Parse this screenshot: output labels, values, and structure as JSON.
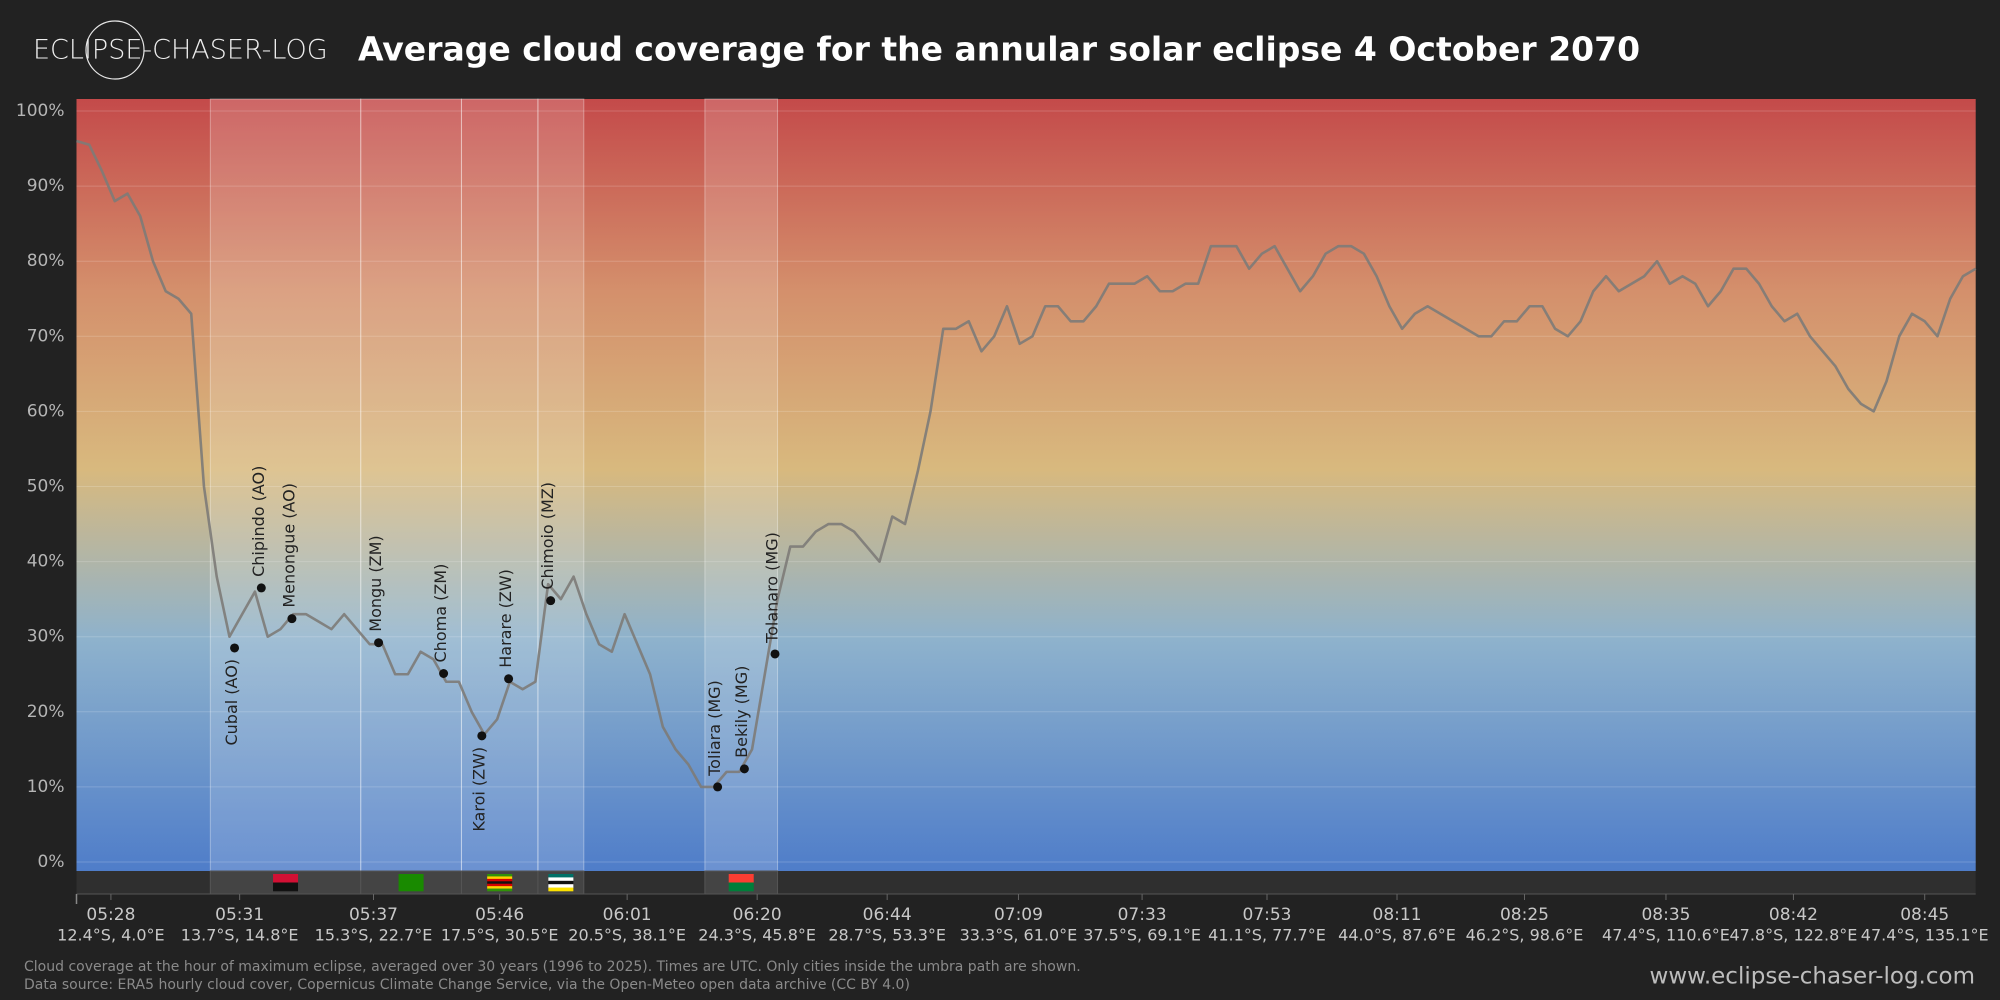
{
  "brand": "ECLIPSE-CHASER-LOG",
  "chart_data": {
    "type": "line",
    "title": "Average cloud coverage for the annular solar eclipse 4 October 2070",
    "color": "#7d7b78",
    "values": [
      96,
      95.5,
      92,
      88,
      89,
      86,
      80,
      76,
      75,
      73,
      50,
      38,
      30,
      33,
      36,
      30,
      31,
      33,
      33,
      32,
      31,
      33,
      31,
      29,
      29,
      25,
      25,
      28,
      27,
      24,
      24,
      20,
      17,
      19,
      24,
      23,
      24,
      37,
      35,
      38,
      33,
      29,
      28,
      33,
      29,
      25,
      18,
      15,
      13,
      10,
      10,
      12,
      12,
      15,
      25,
      35,
      42,
      42,
      44,
      45,
      45,
      44,
      42,
      40,
      46,
      45,
      52,
      60,
      71,
      71,
      72,
      68,
      70,
      74,
      69,
      70,
      74,
      74,
      72,
      72,
      74,
      77,
      77,
      77,
      78,
      76,
      76,
      77,
      77,
      82,
      82,
      82,
      79,
      81,
      82,
      79,
      76,
      78,
      81,
      82,
      82,
      81,
      78,
      74,
      71,
      73,
      74,
      73,
      72,
      71,
      70,
      70,
      72,
      72,
      74,
      74,
      71,
      70,
      72,
      76,
      78,
      76,
      77,
      78,
      80,
      77,
      78,
      77,
      74,
      76,
      79,
      79,
      77,
      74,
      72,
      73,
      70,
      68,
      66,
      63,
      61,
      60,
      64,
      70,
      73,
      72,
      70,
      75,
      78,
      79
    ],
    "xlim": [
      0,
      149
    ],
    "ylim": [
      0,
      100
    ],
    "yticks": [
      {
        "value": 0,
        "label": "0%"
      },
      {
        "value": 10,
        "label": "10%"
      },
      {
        "value": 20,
        "label": "20%"
      },
      {
        "value": 30,
        "label": "30%"
      },
      {
        "value": 40,
        "label": "40%"
      },
      {
        "value": 50,
        "label": "50%"
      },
      {
        "value": 60,
        "label": "60%"
      },
      {
        "value": 70,
        "label": "70%"
      },
      {
        "value": 80,
        "label": "80%"
      },
      {
        "value": 90,
        "label": "90%"
      },
      {
        "value": 100,
        "label": "100%"
      }
    ],
    "xticks": [
      {
        "value": 2.7,
        "label": "05:28",
        "location": "12.4°S, 4.0°E"
      },
      {
        "value": 12.8,
        "label": "05:31",
        "location": "13.7°S, 14.8°E"
      },
      {
        "value": 23.3,
        "label": "05:37",
        "location": "15.3°S, 22.7°E"
      },
      {
        "value": 33.2,
        "label": "05:46",
        "location": "17.5°S, 30.5°E"
      },
      {
        "value": 43.2,
        "label": "06:01",
        "location": "20.5°S, 38.1°E"
      },
      {
        "value": 53.4,
        "label": "06:20",
        "location": "24.3°S, 45.8°E"
      },
      {
        "value": 63.6,
        "label": "06:44",
        "location": "28.7°S, 53.3°E"
      },
      {
        "value": 73.9,
        "label": "07:09",
        "location": "33.3°S, 61.0°E"
      },
      {
        "value": 83.6,
        "label": "07:33",
        "location": "37.5°S, 69.1°E"
      },
      {
        "value": 93.4,
        "label": "07:53",
        "location": "41.1°S, 77.7°E"
      },
      {
        "value": 103.6,
        "label": "08:11",
        "location": "44.0°S, 87.6°E"
      },
      {
        "value": 113.6,
        "label": "08:25",
        "location": "46.2°S, 98.6°E"
      },
      {
        "value": 124.7,
        "label": "08:35",
        "location": "47.4°S, 110.6°E"
      },
      {
        "value": 134.7,
        "label": "08:42",
        "location": "47.8°S, 122.8°E"
      },
      {
        "value": 145.0,
        "label": "08:45",
        "location": "47.4°S, 135.1°E"
      }
    ],
    "grid": true,
    "regions": [
      {
        "start": 10.5,
        "end": 22.3,
        "flag_colors": [
          "#d21034",
          "#111111"
        ]
      },
      {
        "start": 22.3,
        "end": 30.2,
        "flag_colors": [
          "#198a00",
          "#198a00"
        ]
      },
      {
        "start": 30.2,
        "end": 36.2,
        "flag_colors": [
          "#319208",
          "#ffd200",
          "#d40000",
          "#111111",
          "#d40000",
          "#ffd200",
          "#319208"
        ]
      },
      {
        "start": 36.2,
        "end": 39.8,
        "flag_colors": [
          "#007168",
          "#ffffff",
          "#111111",
          "#ffffff",
          "#fce100"
        ]
      },
      {
        "start": 49.3,
        "end": 55.0,
        "flag_colors": [
          "#fc3d32",
          "#007e3a"
        ]
      }
    ],
    "cities": [
      {
        "label": "Cubal (AO)",
        "x": 12.4,
        "value": 28.5,
        "side": "below"
      },
      {
        "label": "Chipindo (AO)",
        "x": 14.5,
        "value": 36.5,
        "side": "above"
      },
      {
        "label": "Menongue (AO)",
        "x": 16.9,
        "value": 32.4,
        "side": "above"
      },
      {
        "label": "Mongu (ZM)",
        "x": 23.7,
        "value": 29.2,
        "side": "above"
      },
      {
        "label": "Choma (ZM)",
        "x": 28.8,
        "value": 25.1,
        "side": "above"
      },
      {
        "label": "Karoi (ZW)",
        "x": 31.8,
        "value": 16.8,
        "side": "below"
      },
      {
        "label": "Harare (ZW)",
        "x": 33.9,
        "value": 24.4,
        "side": "above"
      },
      {
        "label": "Chimoio (MZ)",
        "x": 37.2,
        "value": 34.8,
        "side": "above"
      },
      {
        "label": "Toliara (MG)",
        "x": 50.3,
        "value": 10.0,
        "side": "above"
      },
      {
        "label": "Bekily (MG)",
        "x": 52.4,
        "value": 12.4,
        "side": "above"
      },
      {
        "label": "Tolanaro (MG)",
        "x": 54.8,
        "value": 27.7,
        "side": "above"
      }
    ]
  },
  "notes": [
    "Cloud coverage at the hour of maximum eclipse, averaged over 30 years (1996 to 2025). Times are UTC. Only cities inside the umbra path are shown.",
    "Data source: ERA5 hourly cloud cover, Copernicus Climate Change Service, via the Open-Meteo open data archive (CC BY 4.0)"
  ],
  "source_url": "www.eclipse-chaser-log.com"
}
